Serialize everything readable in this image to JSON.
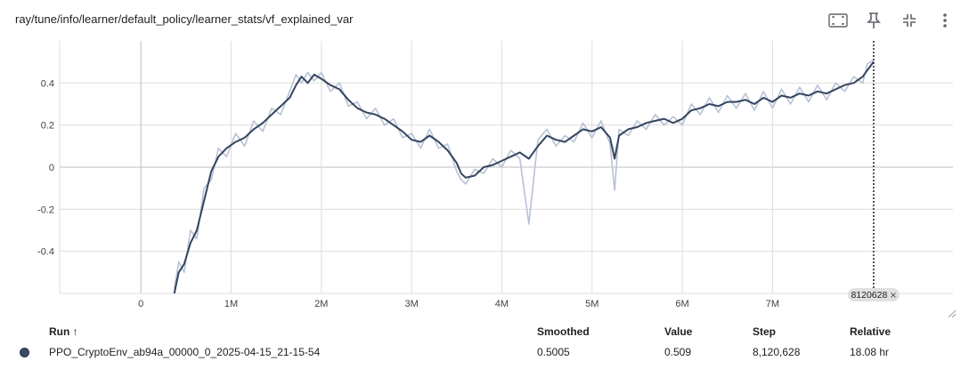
{
  "title": "ray/tune/info/learner/default_policy/learner_stats/vf_explained_var",
  "toolbar": {
    "icons": [
      "fit-domain-icon",
      "pin-icon",
      "collapse-icon",
      "more-vert-icon"
    ]
  },
  "colors": {
    "smoothed_line": "#34445f",
    "raw_line": "#b7c2d6",
    "grid": "#dddddd",
    "axis_zero": "#bdbdbd"
  },
  "chart_data": {
    "type": "line",
    "xlabel": "",
    "ylabel": "",
    "xlim": [
      -900000,
      9000000
    ],
    "ylim": [
      -0.6,
      0.6
    ],
    "x_ticks": [
      0,
      1000000,
      2000000,
      3000000,
      4000000,
      5000000,
      6000000,
      7000000
    ],
    "x_tick_labels": [
      "0",
      "1M",
      "2M",
      "3M",
      "4M",
      "5M",
      "6M",
      "7M"
    ],
    "y_ticks": [
      -0.4,
      -0.2,
      0,
      0.2,
      0.4
    ],
    "y_tick_labels": [
      "-0.4",
      "-0.2",
      "0",
      "0.2",
      "0.4"
    ],
    "hover_step": 8120628,
    "hover_label": "8120628",
    "grid": true,
    "series": [
      {
        "name": "PPO_CryptoEnv_ab94a_00000_0_2025-04-15_21-15-54",
        "x": [
          370000,
          420000,
          480000,
          550000,
          620000,
          700000,
          780000,
          860000,
          950000,
          1050000,
          1150000,
          1250000,
          1350000,
          1450000,
          1550000,
          1650000,
          1720000,
          1780000,
          1850000,
          1920000,
          2000000,
          2100000,
          2200000,
          2300000,
          2400000,
          2500000,
          2600000,
          2700000,
          2800000,
          2900000,
          3000000,
          3100000,
          3200000,
          3300000,
          3400000,
          3500000,
          3550000,
          3600000,
          3700000,
          3800000,
          3900000,
          4000000,
          4100000,
          4200000,
          4300000,
          4400000,
          4500000,
          4600000,
          4700000,
          4800000,
          4900000,
          5000000,
          5100000,
          5200000,
          5250000,
          5300000,
          5400000,
          5500000,
          5600000,
          5700000,
          5800000,
          5900000,
          6000000,
          6100000,
          6200000,
          6300000,
          6400000,
          6500000,
          6600000,
          6700000,
          6800000,
          6900000,
          7000000,
          7100000,
          7200000,
          7300000,
          7400000,
          7500000,
          7600000,
          7700000,
          7800000,
          7900000,
          8000000,
          8050000,
          8120628
        ],
        "smoothed": [
          -0.6,
          -0.5,
          -0.46,
          -0.36,
          -0.3,
          -0.16,
          -0.02,
          0.05,
          0.09,
          0.12,
          0.14,
          0.18,
          0.21,
          0.25,
          0.29,
          0.33,
          0.39,
          0.43,
          0.4,
          0.44,
          0.42,
          0.39,
          0.37,
          0.32,
          0.28,
          0.26,
          0.25,
          0.23,
          0.2,
          0.17,
          0.13,
          0.12,
          0.15,
          0.12,
          0.08,
          0.02,
          -0.03,
          -0.05,
          -0.04,
          0.0,
          0.01,
          0.03,
          0.05,
          0.07,
          0.04,
          0.1,
          0.15,
          0.13,
          0.12,
          0.15,
          0.18,
          0.17,
          0.19,
          0.14,
          0.04,
          0.15,
          0.18,
          0.19,
          0.21,
          0.22,
          0.23,
          0.21,
          0.23,
          0.27,
          0.28,
          0.3,
          0.29,
          0.31,
          0.31,
          0.32,
          0.3,
          0.33,
          0.31,
          0.34,
          0.33,
          0.35,
          0.34,
          0.36,
          0.35,
          0.37,
          0.39,
          0.4,
          0.43,
          0.46,
          0.5005
        ],
        "value": [
          -0.58,
          -0.45,
          -0.5,
          -0.3,
          -0.34,
          -0.1,
          -0.06,
          0.09,
          0.05,
          0.16,
          0.1,
          0.22,
          0.17,
          0.28,
          0.25,
          0.36,
          0.44,
          0.4,
          0.45,
          0.41,
          0.45,
          0.36,
          0.4,
          0.29,
          0.31,
          0.23,
          0.28,
          0.2,
          0.23,
          0.14,
          0.16,
          0.09,
          0.18,
          0.09,
          0.11,
          -0.02,
          -0.06,
          -0.08,
          -0.01,
          -0.03,
          0.04,
          0.0,
          0.08,
          0.04,
          -0.27,
          0.13,
          0.18,
          0.1,
          0.15,
          0.12,
          0.21,
          0.14,
          0.22,
          0.11,
          -0.11,
          0.18,
          0.15,
          0.22,
          0.18,
          0.25,
          0.2,
          0.24,
          0.2,
          0.3,
          0.25,
          0.33,
          0.26,
          0.34,
          0.28,
          0.35,
          0.27,
          0.36,
          0.28,
          0.37,
          0.3,
          0.38,
          0.31,
          0.39,
          0.32,
          0.4,
          0.36,
          0.43,
          0.4,
          0.49,
          0.509
        ]
      }
    ]
  },
  "table": {
    "headers": {
      "run": "Run ↑",
      "smoothed": "Smoothed",
      "value": "Value",
      "step": "Step",
      "relative": "Relative"
    },
    "rows": [
      {
        "run": "PPO_CryptoEnv_ab94a_00000_0_2025-04-15_21-15-54",
        "smoothed": "0.5005",
        "value": "0.509",
        "step": "8,120,628",
        "relative": "18.08 hr"
      }
    ]
  }
}
